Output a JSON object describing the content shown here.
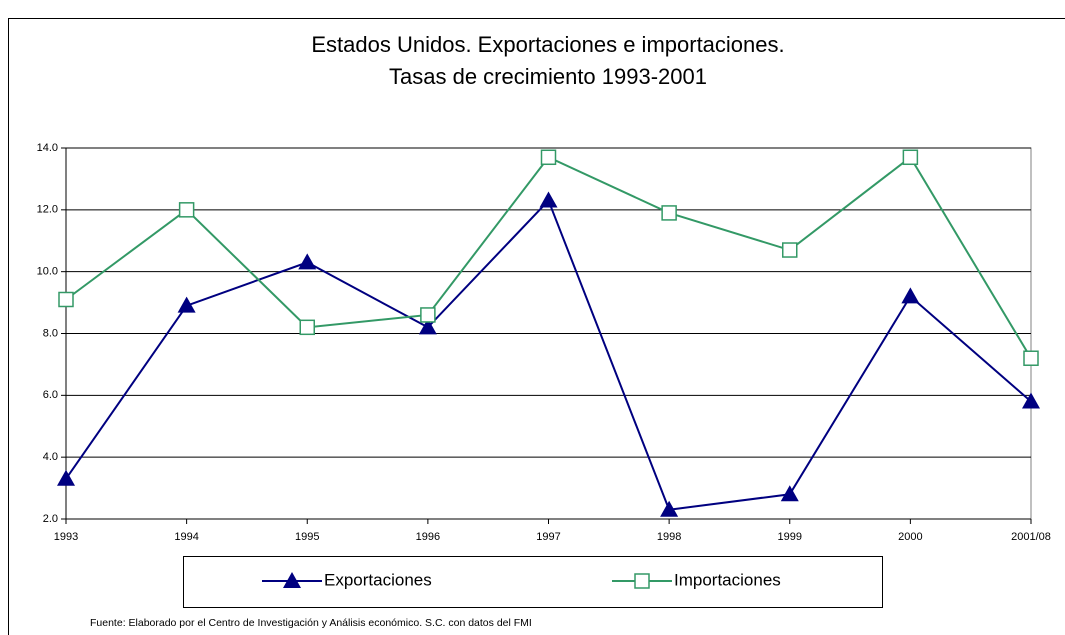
{
  "chart_data": {
    "type": "line",
    "title": "Estados Unidos. Exportaciones e importaciones.",
    "subtitle": "Tasas de crecimiento 1993-2001",
    "categories": [
      "1993",
      "1994",
      "1995",
      "1996",
      "1997",
      "1998",
      "1999",
      "2000",
      "2001/08"
    ],
    "series": [
      {
        "name": "Exportaciones",
        "color": "#000080",
        "marker": "triangle",
        "values": [
          3.3,
          8.9,
          10.3,
          8.2,
          12.3,
          2.3,
          2.8,
          9.2,
          5.8
        ]
      },
      {
        "name": "Importaciones",
        "color": "#339966",
        "marker": "square",
        "values": [
          9.1,
          12.0,
          8.2,
          8.6,
          13.7,
          11.9,
          10.7,
          13.7,
          7.2
        ]
      }
    ],
    "ylim": [
      2,
      14
    ],
    "yticks": [
      {
        "value": 2,
        "label": "2.0"
      },
      {
        "value": 4,
        "label": "4.0"
      },
      {
        "value": 6,
        "label": "6.0"
      },
      {
        "value": 8,
        "label": "8.0"
      },
      {
        "value": 10,
        "label": "10.0"
      },
      {
        "value": 12,
        "label": "12.0"
      },
      {
        "value": 14,
        "label": "14.0"
      }
    ],
    "grid": true,
    "legend": "bottom",
    "source": "Fuente: Elaborado por el Centro de Investigación y Análisis económico. S.C. con datos del FMI"
  }
}
